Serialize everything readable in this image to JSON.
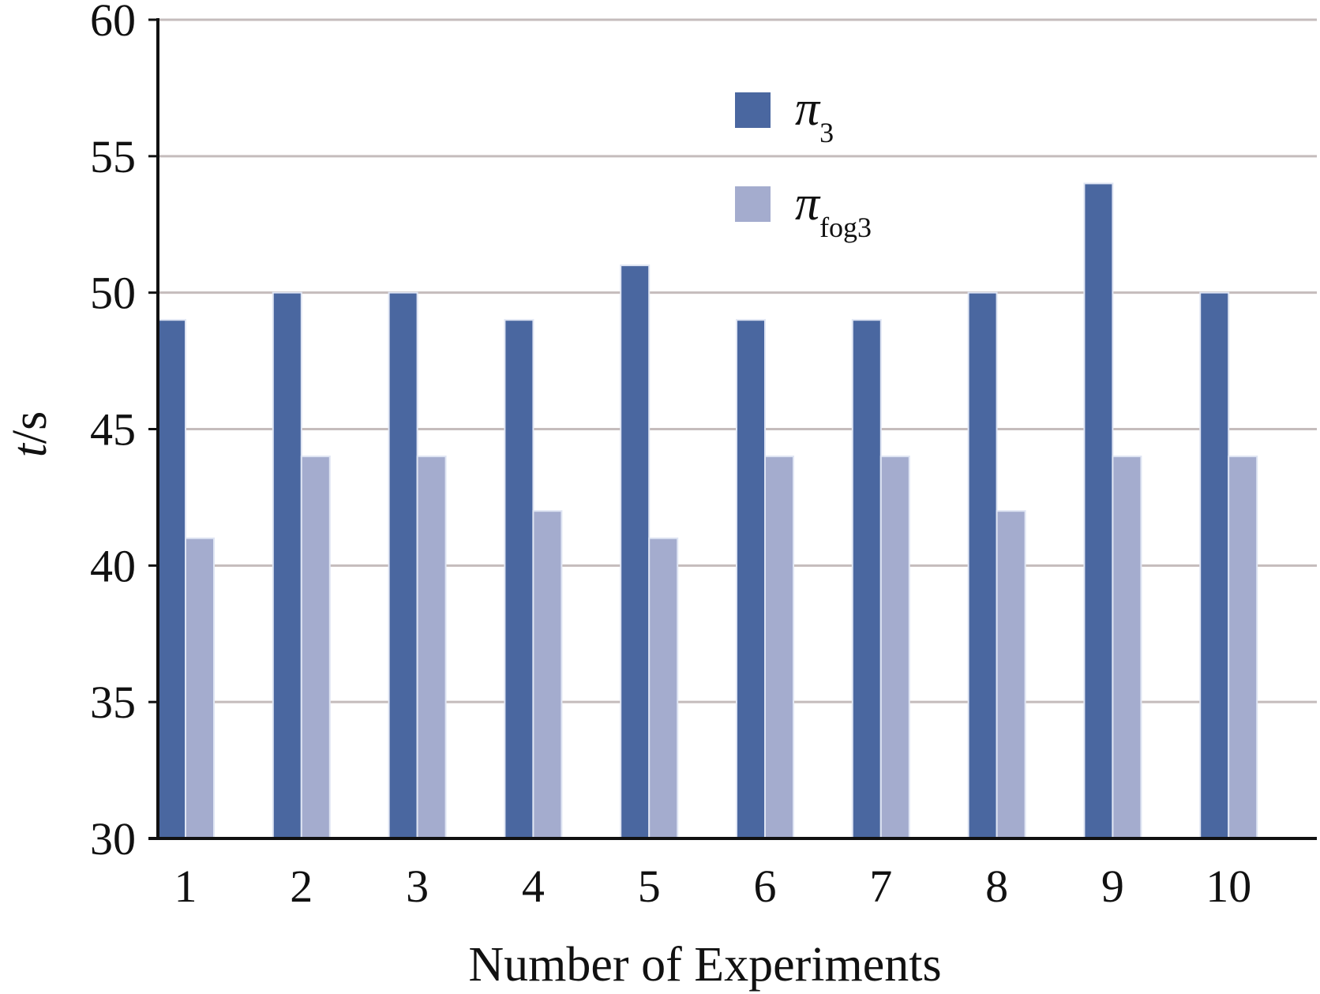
{
  "chart_data": {
    "type": "bar",
    "categories": [
      "1",
      "2",
      "3",
      "4",
      "5",
      "6",
      "7",
      "8",
      "9",
      "10"
    ],
    "series": [
      {
        "name": "π",
        "name_sub": "3",
        "color": "#4a67a0",
        "values": [
          49,
          50,
          50,
          49,
          51,
          49,
          49,
          50,
          54,
          50
        ]
      },
      {
        "name": "π",
        "name_sub": "fog3",
        "color": "#a4acce",
        "values": [
          41,
          44,
          44,
          42,
          41,
          44,
          44,
          42,
          44,
          44
        ]
      }
    ],
    "xlabel": "Number of Experiments",
    "ylabel": {
      "var": "t",
      "unit": "/s"
    },
    "ylim": [
      30,
      60
    ],
    "yticks": [
      30,
      35,
      40,
      45,
      50,
      55,
      60
    ],
    "grid": true,
    "legend_position": "top-center"
  }
}
